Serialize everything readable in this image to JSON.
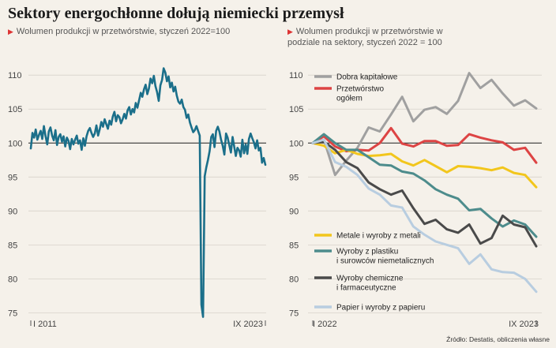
{
  "title": "Sektory energochłonne dołują niemiecki przemysł",
  "source": "Źródło: Destatis, obliczenia własne",
  "colors": {
    "background": "#f5f1ea",
    "left_line": "#1b6f8a",
    "grid": "#d8d3ca",
    "reference_line": "#222222",
    "accent_triangle": "#dd3333"
  },
  "chart_data": [
    {
      "type": "line",
      "subtitle": "Wolumen produkcji w przetwórstwie, styczeń 2022=100",
      "xlabel": "",
      "ylabel": "",
      "x_tick_labels": [
        "I 2011",
        "IX 2023"
      ],
      "ylim": [
        74,
        112
      ],
      "yticks": [
        75,
        80,
        85,
        90,
        95,
        100,
        105,
        110
      ],
      "reference_line": 100,
      "grid": true,
      "series": [
        {
          "values": [
            99.2,
            101.5,
            100.8,
            102.0,
            100.5,
            101.2,
            101.8,
            100.6,
            102.5,
            101.0,
            99.8,
            101.7,
            102.3,
            101.1,
            100.4,
            101.9,
            99.7,
            100.9,
            101.3,
            100.2,
            101.0,
            99.5,
            100.8,
            100.3,
            99.1,
            100.6,
            99.8,
            100.5,
            101.1,
            99.9,
            100.4,
            99.0,
            100.7,
            99.6,
            101.0,
            101.8,
            102.2,
            101.5,
            100.9,
            101.4,
            102.6,
            101.1,
            102.0,
            103.1,
            102.4,
            103.5,
            102.8,
            102.1,
            103.3,
            102.7,
            103.9,
            104.6,
            103.2,
            104.1,
            103.8,
            102.9,
            103.5,
            104.3,
            103.6,
            104.8,
            105.3,
            104.2,
            105.0,
            104.5,
            105.9,
            105.2,
            106.3,
            107.4,
            106.8,
            107.9,
            108.6,
            107.2,
            108.0,
            109.5,
            108.8,
            109.9,
            108.4,
            107.5,
            106.2,
            108.5,
            109.3,
            111.0,
            110.4,
            109.1,
            109.8,
            108.2,
            108.9,
            107.6,
            108.3,
            107.0,
            106.1,
            105.8,
            106.4,
            105.3,
            104.9,
            103.7,
            104.2,
            103.0,
            102.3,
            101.6,
            101.9,
            102.5,
            101.8,
            101.1,
            76.2,
            74.4,
            95.1,
            96.4,
            97.5,
            98.8,
            100.9,
            101.3,
            99.4,
            101.8,
            102.4,
            101.7,
            100.5,
            99.6,
            98.3,
            101.4,
            100.8,
            99.7,
            98.6,
            100.9,
            99.5,
            98.1,
            99.3,
            98.9,
            98.0,
            100.5,
            98.5,
            99.8,
            98.4,
            100.6,
            101.4,
            100.7,
            100.1,
            99.2,
            100.4,
            98.9,
            99.3,
            97.1,
            97.8,
            96.8
          ]
        }
      ]
    },
    {
      "type": "line",
      "subtitle": "Wolumen produkcji w przetwórstwie w podziale na sektory, styczeń 2022 = 100",
      "xlabel": "",
      "ylabel": "",
      "x_tick_labels": [
        "I 2022",
        "IX 2023"
      ],
      "ylim": [
        74,
        112
      ],
      "yticks": [
        75,
        80,
        85,
        90,
        95,
        100,
        105,
        110
      ],
      "reference_line": 100,
      "grid": true,
      "series": [
        {
          "name": "Dobra kapitałowe",
          "color": "#a0a0a0",
          "values": [
            100.0,
            100.5,
            95.3,
            97.4,
            99.3,
            102.3,
            101.7,
            104.2,
            106.8,
            103.2,
            104.9,
            105.3,
            104.3,
            106.2,
            110.3,
            108.1,
            109.3,
            107.3,
            105.5,
            106.3,
            105.1
          ]
        },
        {
          "name": "Przetwórstwo ogółem",
          "color": "#dd4444",
          "values": [
            100.0,
            101.0,
            99.5,
            98.8,
            99.0,
            98.9,
            100.0,
            102.2,
            99.9,
            99.5,
            100.3,
            100.3,
            99.6,
            99.7,
            101.3,
            100.8,
            100.4,
            100.1,
            99.0,
            99.3,
            97.1
          ]
        },
        {
          "name": "Metale i wyroby z metali",
          "color": "#f2c61c",
          "values": [
            100.0,
            99.6,
            98.5,
            99.0,
            98.4,
            98.1,
            98.2,
            98.4,
            97.3,
            96.7,
            97.5,
            96.6,
            95.7,
            96.6,
            96.5,
            96.3,
            96.0,
            96.4,
            95.6,
            95.3,
            93.5
          ]
        },
        {
          "name": "Wyroby z plastiku i surowców niemetalicznych",
          "color": "#4d8c8c",
          "values": [
            100.0,
            101.3,
            100.0,
            99.0,
            99.0,
            97.9,
            96.8,
            96.7,
            95.8,
            95.5,
            94.5,
            93.2,
            92.4,
            91.8,
            90.1,
            90.3,
            88.9,
            87.7,
            88.6,
            88.0,
            86.2
          ]
        },
        {
          "name": "Wyroby chemiczne i farmaceutyczne",
          "color": "#4a4a4a",
          "values": [
            100.0,
            100.2,
            99.0,
            97.2,
            96.3,
            94.2,
            93.2,
            92.4,
            93.0,
            90.4,
            88.1,
            88.7,
            87.3,
            86.8,
            88.0,
            85.2,
            86.0,
            89.3,
            88.0,
            87.6,
            84.8
          ]
        },
        {
          "name": "Papier i wyroby z papieru",
          "color": "#b8cde0",
          "values": [
            100.0,
            100.5,
            97.2,
            96.5,
            95.3,
            93.3,
            92.4,
            90.8,
            90.5,
            87.7,
            86.5,
            85.5,
            85.0,
            84.5,
            82.2,
            83.6,
            81.4,
            81.0,
            80.9,
            80.0,
            78.1
          ]
        }
      ]
    }
  ]
}
